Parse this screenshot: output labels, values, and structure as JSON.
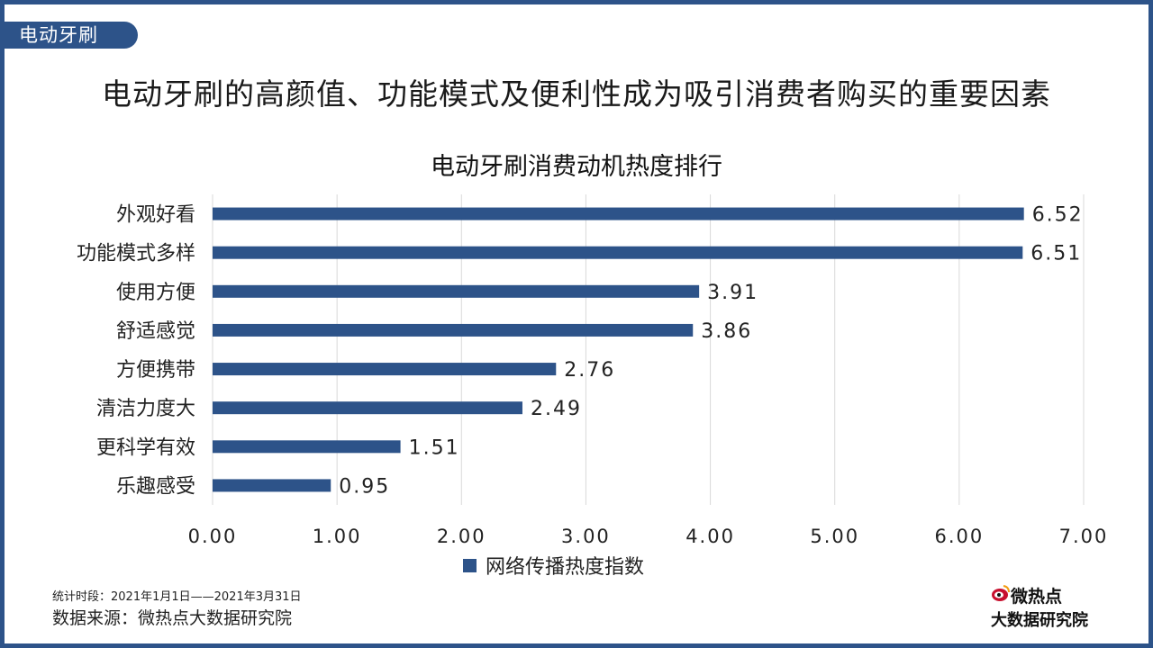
{
  "tag_label": "电动牙刷",
  "headline": "电动牙刷的高颜值、功能模式及便利性成为吸引消费者购买的重要因素",
  "footer": {
    "period": "统计时段：2021年1月1日——2021年3月31日",
    "source": "数据来源：微热点大数据研究院"
  },
  "logo": {
    "top_text": "微热点",
    "bottom_text": "大数据研究院",
    "icon": "weibo-eye-icon"
  },
  "colors": {
    "accent": "#2d5389",
    "grid": "#d9d9d9",
    "text": "#222222"
  },
  "chart_data": {
    "type": "bar",
    "orientation": "horizontal",
    "title": "电动牙刷消费动机热度排行",
    "categories": [
      "外观好看",
      "功能模式多样",
      "使用方便",
      "舒适感觉",
      "方便携带",
      "清洁力度大",
      "更科学有效",
      "乐趣感受"
    ],
    "series": [
      {
        "name": "网络传播热度指数",
        "values": [
          6.52,
          6.51,
          3.91,
          3.86,
          2.76,
          2.49,
          1.51,
          0.95
        ],
        "color": "#2d5389"
      }
    ],
    "value_labels": [
      "6.52",
      "6.51",
      "3.91",
      "3.86",
      "2.76",
      "2.49",
      "1.51",
      "0.95"
    ],
    "xlim": [
      0,
      7
    ],
    "x_ticks": [
      "0.00",
      "1.00",
      "2.00",
      "3.00",
      "4.00",
      "5.00",
      "6.00",
      "7.00"
    ],
    "grid": "vertical",
    "legend": "bottom"
  }
}
